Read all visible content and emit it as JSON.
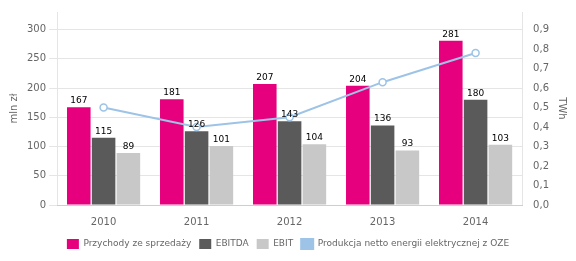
{
  "chart_data": {
    "type": "bar",
    "categories": [
      "2010",
      "2011",
      "2012",
      "2013",
      "2014"
    ],
    "series": [
      {
        "name": "Przychody ze sprzedaży",
        "color": "#e6007e",
        "values": [
          167,
          181,
          207,
          204,
          281
        ],
        "data_labels": true
      },
      {
        "name": "EBITDA",
        "color": "#5a5a5a",
        "values": [
          115,
          126,
          143,
          136,
          180
        ],
        "data_labels": true
      },
      {
        "name": "EBIT",
        "color": "#c8c8c8",
        "values": [
          89,
          101,
          104,
          93,
          103
        ],
        "data_labels": true
      },
      {
        "name": "Produkcja netto energii elektrycznej z OZE",
        "color": "#9dc3e6",
        "type": "line",
        "marker": "circle",
        "axis": "y2",
        "values": [
          0.5,
          0.4,
          0.45,
          0.63,
          0.78
        ]
      }
    ],
    "ylabel": "mln zł",
    "y2label": "TWh",
    "ylim": [
      0,
      330
    ],
    "yticks": [
      0,
      50,
      100,
      150,
      200,
      250,
      300
    ],
    "y2lim": [
      0.0,
      0.99
    ],
    "y2ticks": [
      {
        "value": 0.0,
        "label": "0,0"
      },
      {
        "value": 0.1,
        "label": "0,1"
      },
      {
        "value": 0.2,
        "label": "0,2"
      },
      {
        "value": 0.3,
        "label": "0,3"
      },
      {
        "value": 0.4,
        "label": "0,4"
      },
      {
        "value": 0.5,
        "label": "0,5"
      },
      {
        "value": 0.6,
        "label": "0,6"
      },
      {
        "value": 0.7,
        "label": "0,7"
      },
      {
        "value": 0.8,
        "label": "0,8"
      },
      {
        "value": 0.9,
        "label": "0,9"
      }
    ],
    "grid": true,
    "legend": "bottom"
  }
}
